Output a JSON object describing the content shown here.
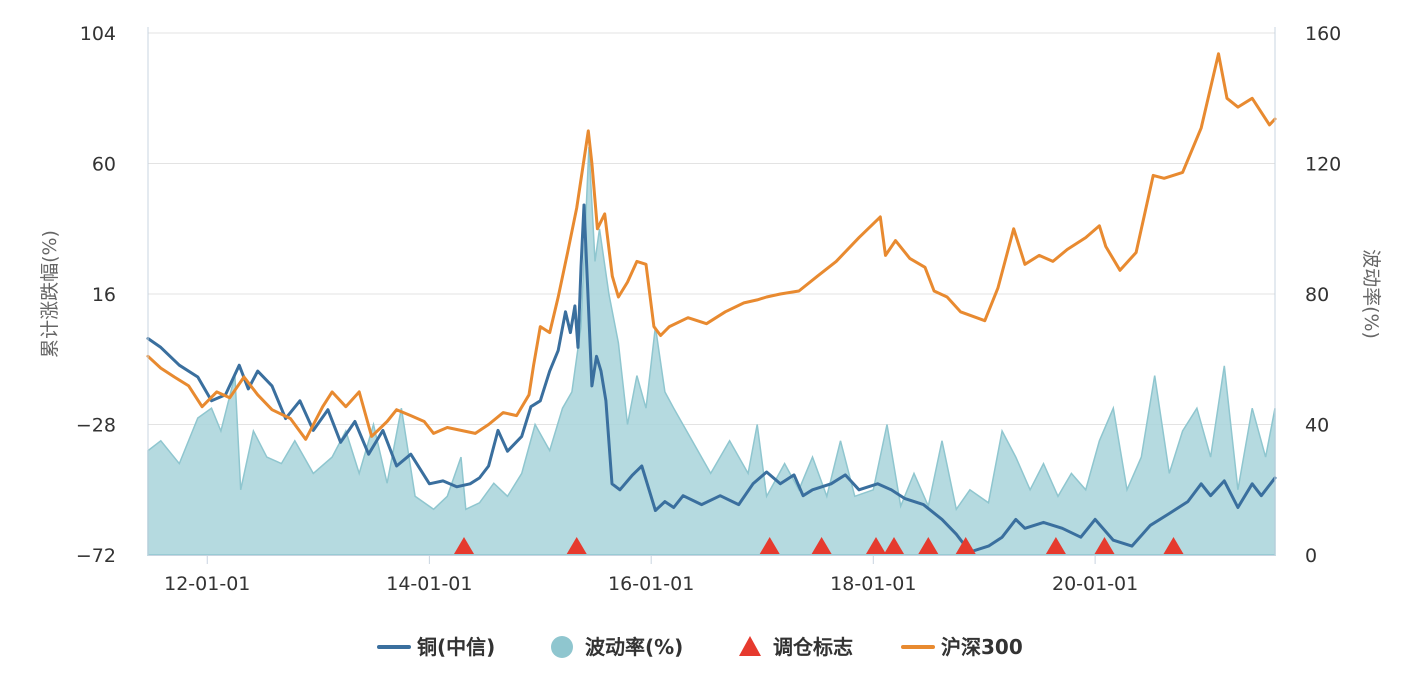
{
  "chart_data": {
    "type": "line",
    "x_axis": {
      "type": "date",
      "range": [
        "2011-06-20",
        "2021-08-15"
      ],
      "ticks": [
        "2012-01-01",
        "2014-01-01",
        "2016-01-01",
        "2018-01-01",
        "2020-01-01"
      ],
      "tick_labels": [
        "12-01-01",
        "14-01-01",
        "16-01-01",
        "18-01-01",
        "20-01-01"
      ]
    },
    "y_left": {
      "label": "累计涨跌幅(%)",
      "range": [
        -72,
        104
      ],
      "ticks": [
        -72,
        -28,
        16,
        60,
        104
      ],
      "tick_labels": [
        "−72",
        "−28",
        "16",
        "60",
        "104"
      ]
    },
    "y_right": {
      "label": "波动率(%)",
      "range": [
        0,
        160
      ],
      "ticks": [
        0,
        40,
        80,
        120,
        160
      ],
      "tick_labels": [
        "0",
        "40",
        "80",
        "120",
        "160"
      ]
    },
    "grid": "horizontal",
    "legend_position": "bottom",
    "series": [
      {
        "name": "铜(中信)",
        "type": "line",
        "axis": "left",
        "color": "#3a6f9e",
        "points": [
          [
            "2011-06-20",
            1
          ],
          [
            "2011-08-01",
            -2
          ],
          [
            "2011-10-01",
            -8
          ],
          [
            "2011-12-01",
            -12
          ],
          [
            "2012-01-15",
            -20
          ],
          [
            "2012-03-01",
            -18
          ],
          [
            "2012-04-15",
            -8
          ],
          [
            "2012-05-15",
            -16
          ],
          [
            "2012-06-15",
            -10
          ],
          [
            "2012-08-01",
            -15
          ],
          [
            "2012-09-15",
            -26
          ],
          [
            "2012-11-01",
            -20
          ],
          [
            "2012-12-15",
            -30
          ],
          [
            "2013-02-01",
            -23
          ],
          [
            "2013-03-15",
            -34
          ],
          [
            "2013-05-01",
            -27
          ],
          [
            "2013-06-15",
            -38
          ],
          [
            "2013-08-01",
            -30
          ],
          [
            "2013-09-15",
            -42
          ],
          [
            "2013-11-01",
            -38
          ],
          [
            "2014-01-01",
            -48
          ],
          [
            "2014-02-15",
            -47
          ],
          [
            "2014-04-01",
            -49
          ],
          [
            "2014-05-15",
            -48
          ],
          [
            "2014-06-15",
            -46
          ],
          [
            "2014-07-15",
            -42
          ],
          [
            "2014-08-15",
            -30
          ],
          [
            "2014-09-15",
            -37
          ],
          [
            "2014-11-01",
            -32
          ],
          [
            "2014-12-01",
            -22
          ],
          [
            "2015-01-01",
            -20
          ],
          [
            "2015-02-01",
            -10
          ],
          [
            "2015-03-01",
            -3
          ],
          [
            "2015-03-25",
            10
          ],
          [
            "2015-04-10",
            3
          ],
          [
            "2015-04-25",
            12
          ],
          [
            "2015-05-05",
            -2
          ],
          [
            "2015-05-15",
            25
          ],
          [
            "2015-05-25",
            46
          ],
          [
            "2015-06-05",
            20
          ],
          [
            "2015-06-20",
            -15
          ],
          [
            "2015-07-05",
            -5
          ],
          [
            "2015-07-20",
            -10
          ],
          [
            "2015-08-05",
            -20
          ],
          [
            "2015-08-25",
            -48
          ],
          [
            "2015-09-20",
            -50
          ],
          [
            "2015-11-01",
            -45
          ],
          [
            "2015-12-01",
            -42
          ],
          [
            "2016-01-15",
            -57
          ],
          [
            "2016-02-15",
            -54
          ],
          [
            "2016-03-15",
            -56
          ],
          [
            "2016-04-15",
            -52
          ],
          [
            "2016-06-15",
            -55
          ],
          [
            "2016-08-15",
            -52
          ],
          [
            "2016-10-15",
            -55
          ],
          [
            "2016-12-01",
            -48
          ],
          [
            "2017-01-15",
            -44
          ],
          [
            "2017-03-01",
            -48
          ],
          [
            "2017-04-15",
            -45
          ],
          [
            "2017-05-15",
            -52
          ],
          [
            "2017-06-15",
            -50
          ],
          [
            "2017-08-15",
            -48
          ],
          [
            "2017-10-01",
            -45
          ],
          [
            "2017-11-15",
            -50
          ],
          [
            "2018-01-15",
            -48
          ],
          [
            "2018-03-01",
            -50
          ],
          [
            "2018-04-15",
            -53
          ],
          [
            "2018-06-15",
            -55
          ],
          [
            "2018-08-15",
            -60
          ],
          [
            "2018-10-01",
            -65
          ],
          [
            "2018-11-15",
            -71
          ],
          [
            "2019-01-15",
            -69
          ],
          [
            "2019-03-01",
            -66
          ],
          [
            "2019-04-15",
            -60
          ],
          [
            "2019-05-15",
            -63
          ],
          [
            "2019-07-15",
            -61
          ],
          [
            "2019-09-15",
            -63
          ],
          [
            "2019-11-15",
            -66
          ],
          [
            "2020-01-01",
            -60
          ],
          [
            "2020-03-01",
            -67
          ],
          [
            "2020-05-01",
            -69
          ],
          [
            "2020-07-01",
            -62
          ],
          [
            "2020-09-01",
            -58
          ],
          [
            "2020-11-01",
            -54
          ],
          [
            "2020-12-15",
            -48
          ],
          [
            "2021-01-15",
            -52
          ],
          [
            "2021-03-01",
            -47
          ],
          [
            "2021-04-15",
            -56
          ],
          [
            "2021-06-01",
            -48
          ],
          [
            "2021-07-01",
            -52
          ],
          [
            "2021-08-15",
            -46
          ]
        ]
      },
      {
        "name": "波动率(%)",
        "type": "area",
        "axis": "right",
        "color": "#a8d4db",
        "points": [
          [
            "2011-06-20",
            32
          ],
          [
            "2011-08-01",
            35
          ],
          [
            "2011-10-01",
            28
          ],
          [
            "2011-12-01",
            42
          ],
          [
            "2012-01-15",
            45
          ],
          [
            "2012-02-15",
            38
          ],
          [
            "2012-04-01",
            55
          ],
          [
            "2012-04-20",
            20
          ],
          [
            "2012-06-01",
            38
          ],
          [
            "2012-07-15",
            30
          ],
          [
            "2012-09-01",
            28
          ],
          [
            "2012-10-15",
            35
          ],
          [
            "2012-12-15",
            25
          ],
          [
            "2013-02-15",
            30
          ],
          [
            "2013-04-01",
            38
          ],
          [
            "2013-05-15",
            25
          ],
          [
            "2013-07-01",
            40
          ],
          [
            "2013-08-15",
            22
          ],
          [
            "2013-10-01",
            45
          ],
          [
            "2013-11-15",
            18
          ],
          [
            "2014-01-15",
            14
          ],
          [
            "2014-03-01",
            18
          ],
          [
            "2014-04-15",
            30
          ],
          [
            "2014-05-01",
            14
          ],
          [
            "2014-06-15",
            16
          ],
          [
            "2014-08-01",
            22
          ],
          [
            "2014-09-15",
            18
          ],
          [
            "2014-11-01",
            25
          ],
          [
            "2014-12-15",
            40
          ],
          [
            "2015-02-01",
            32
          ],
          [
            "2015-03-15",
            45
          ],
          [
            "2015-04-15",
            50
          ],
          [
            "2015-05-15",
            70
          ],
          [
            "2015-06-10",
            125
          ],
          [
            "2015-06-30",
            90
          ],
          [
            "2015-07-15",
            100
          ],
          [
            "2015-08-15",
            80
          ],
          [
            "2015-09-15",
            65
          ],
          [
            "2015-10-15",
            40
          ],
          [
            "2015-11-15",
            55
          ],
          [
            "2015-12-15",
            45
          ],
          [
            "2016-01-15",
            70
          ],
          [
            "2016-02-15",
            50
          ],
          [
            "2016-03-15",
            45
          ],
          [
            "2016-05-15",
            35
          ],
          [
            "2016-07-15",
            25
          ],
          [
            "2016-09-15",
            35
          ],
          [
            "2016-11-15",
            25
          ],
          [
            "2016-12-15",
            40
          ],
          [
            "2017-01-15",
            18
          ],
          [
            "2017-03-15",
            28
          ],
          [
            "2017-05-01",
            20
          ],
          [
            "2017-06-15",
            30
          ],
          [
            "2017-08-01",
            18
          ],
          [
            "2017-09-15",
            35
          ],
          [
            "2017-11-01",
            18
          ],
          [
            "2018-01-01",
            20
          ],
          [
            "2018-02-15",
            40
          ],
          [
            "2018-04-01",
            15
          ],
          [
            "2018-05-15",
            25
          ],
          [
            "2018-07-01",
            15
          ],
          [
            "2018-08-15",
            35
          ],
          [
            "2018-10-01",
            14
          ],
          [
            "2018-11-15",
            20
          ],
          [
            "2019-01-15",
            16
          ],
          [
            "2019-03-01",
            38
          ],
          [
            "2019-04-15",
            30
          ],
          [
            "2019-06-01",
            20
          ],
          [
            "2019-07-15",
            28
          ],
          [
            "2019-09-01",
            18
          ],
          [
            "2019-10-15",
            25
          ],
          [
            "2019-12-01",
            20
          ],
          [
            "2020-01-15",
            35
          ],
          [
            "2020-03-01",
            45
          ],
          [
            "2020-04-15",
            20
          ],
          [
            "2020-06-01",
            30
          ],
          [
            "2020-07-15",
            55
          ],
          [
            "2020-09-01",
            25
          ],
          [
            "2020-10-15",
            38
          ],
          [
            "2020-12-01",
            45
          ],
          [
            "2021-01-15",
            30
          ],
          [
            "2021-03-01",
            58
          ],
          [
            "2021-04-15",
            20
          ],
          [
            "2021-06-01",
            45
          ],
          [
            "2021-07-15",
            30
          ],
          [
            "2021-08-15",
            45
          ]
        ]
      },
      {
        "name": "调仓标志",
        "type": "scatter",
        "marker": "triangle",
        "color": "#e63a2e",
        "x": [
          "2014-04-25",
          "2015-05-01",
          "2017-01-25",
          "2017-07-15",
          "2018-01-10",
          "2018-03-10",
          "2018-07-01",
          "2018-11-01",
          "2019-08-25",
          "2020-02-01",
          "2020-09-15"
        ]
      },
      {
        "name": "沪深300",
        "type": "line",
        "axis": "left",
        "color": "#e88a30",
        "points": [
          [
            "2011-06-20",
            -5
          ],
          [
            "2011-08-01",
            -9
          ],
          [
            "2011-09-15",
            -12
          ],
          [
            "2011-11-01",
            -15
          ],
          [
            "2011-12-15",
            -22
          ],
          [
            "2012-02-01",
            -17
          ],
          [
            "2012-03-15",
            -19
          ],
          [
            "2012-05-01",
            -12
          ],
          [
            "2012-06-15",
            -18
          ],
          [
            "2012-08-01",
            -23
          ],
          [
            "2012-10-01",
            -26
          ],
          [
            "2012-11-20",
            -33
          ],
          [
            "2013-01-15",
            -22
          ],
          [
            "2013-02-15",
            -17
          ],
          [
            "2013-04-01",
            -22
          ],
          [
            "2013-05-15",
            -17
          ],
          [
            "2013-06-25",
            -32
          ],
          [
            "2013-08-15",
            -27
          ],
          [
            "2013-09-15",
            -23
          ],
          [
            "2013-11-01",
            -25
          ],
          [
            "2013-12-15",
            -27
          ],
          [
            "2014-01-15",
            -31
          ],
          [
            "2014-03-01",
            -29
          ],
          [
            "2014-04-15",
            -30
          ],
          [
            "2014-06-01",
            -31
          ],
          [
            "2014-07-15",
            -28
          ],
          [
            "2014-09-01",
            -24
          ],
          [
            "2014-10-15",
            -25
          ],
          [
            "2014-11-25",
            -18
          ],
          [
            "2014-12-10",
            -8
          ],
          [
            "2015-01-01",
            5
          ],
          [
            "2015-02-01",
            3
          ],
          [
            "2015-03-01",
            15
          ],
          [
            "2015-04-01",
            30
          ],
          [
            "2015-05-01",
            45
          ],
          [
            "2015-06-08",
            71
          ],
          [
            "2015-06-20",
            60
          ],
          [
            "2015-07-08",
            38
          ],
          [
            "2015-08-01",
            43
          ],
          [
            "2015-08-26",
            22
          ],
          [
            "2015-09-15",
            15
          ],
          [
            "2015-10-15",
            20
          ],
          [
            "2015-11-15",
            27
          ],
          [
            "2015-12-15",
            26
          ],
          [
            "2016-01-10",
            5
          ],
          [
            "2016-02-01",
            2
          ],
          [
            "2016-03-01",
            5
          ],
          [
            "2016-05-01",
            8
          ],
          [
            "2016-07-01",
            6
          ],
          [
            "2016-09-01",
            10
          ],
          [
            "2016-11-01",
            13
          ],
          [
            "2016-12-15",
            14
          ],
          [
            "2017-01-15",
            15
          ],
          [
            "2017-03-01",
            16
          ],
          [
            "2017-05-01",
            17
          ],
          [
            "2017-07-01",
            22
          ],
          [
            "2017-09-01",
            27
          ],
          [
            "2017-11-15",
            35
          ],
          [
            "2018-01-24",
            42
          ],
          [
            "2018-02-10",
            29
          ],
          [
            "2018-03-15",
            34
          ],
          [
            "2018-05-01",
            28
          ],
          [
            "2018-06-20",
            25
          ],
          [
            "2018-07-20",
            17
          ],
          [
            "2018-09-01",
            15
          ],
          [
            "2018-10-15",
            10
          ],
          [
            "2019-01-03",
            7
          ],
          [
            "2019-02-15",
            18
          ],
          [
            "2019-04-08",
            38
          ],
          [
            "2019-05-15",
            26
          ],
          [
            "2019-07-01",
            29
          ],
          [
            "2019-08-15",
            27
          ],
          [
            "2019-10-01",
            31
          ],
          [
            "2019-12-01",
            35
          ],
          [
            "2020-01-15",
            39
          ],
          [
            "2020-02-05",
            32
          ],
          [
            "2020-03-23",
            24
          ],
          [
            "2020-05-15",
            30
          ],
          [
            "2020-07-10",
            56
          ],
          [
            "2020-08-15",
            55
          ],
          [
            "2020-10-15",
            57
          ],
          [
            "2020-12-15",
            72
          ],
          [
            "2021-02-10",
            97
          ],
          [
            "2021-03-10",
            82
          ],
          [
            "2021-04-15",
            79
          ],
          [
            "2021-06-01",
            82
          ],
          [
            "2021-07-28",
            73
          ],
          [
            "2021-08-15",
            75
          ]
        ]
      }
    ]
  }
}
